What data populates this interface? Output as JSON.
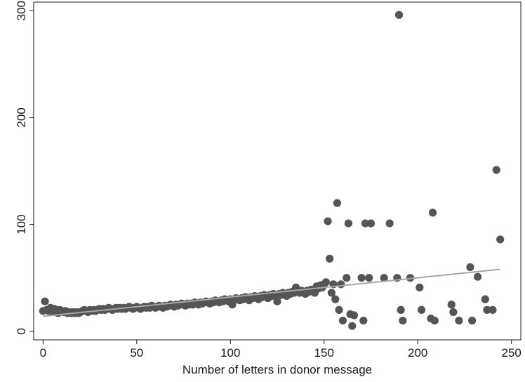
{
  "chart_data": {
    "type": "scatter",
    "title": "",
    "xlabel": "Number of letters in donor message",
    "ylabel": "",
    "xlim": [
      -5,
      255
    ],
    "ylim": [
      -8,
      308
    ],
    "x_ticks": [
      0,
      50,
      100,
      150,
      200,
      250
    ],
    "y_ticks": [
      0,
      100,
      200,
      300
    ],
    "grid": false,
    "legend": "none",
    "colors": {
      "points": "#555555",
      "fit_line": "#a6a6a6",
      "axis": "#1a1a1a"
    },
    "series": [
      {
        "type": "scatter",
        "points": [
          [
            0,
            19
          ],
          [
            1,
            28
          ],
          [
            2,
            20
          ],
          [
            3,
            19
          ],
          [
            4,
            22
          ],
          [
            5,
            18
          ],
          [
            6,
            21
          ],
          [
            7,
            20
          ],
          [
            8,
            17
          ],
          [
            9,
            20
          ],
          [
            10,
            19
          ],
          [
            11,
            18
          ],
          [
            12,
            19
          ],
          [
            13,
            17
          ],
          [
            14,
            18
          ],
          [
            15,
            17
          ],
          [
            16,
            18
          ],
          [
            17,
            17
          ],
          [
            18,
            18
          ],
          [
            19,
            17
          ],
          [
            20,
            18
          ],
          [
            21,
            19
          ],
          [
            22,
            20
          ],
          [
            23,
            19
          ],
          [
            24,
            18
          ],
          [
            25,
            20
          ],
          [
            26,
            19
          ],
          [
            27,
            20
          ],
          [
            28,
            19
          ],
          [
            29,
            20
          ],
          [
            30,
            21
          ],
          [
            31,
            20
          ],
          [
            32,
            21
          ],
          [
            33,
            20
          ],
          [
            34,
            21
          ],
          [
            35,
            22
          ],
          [
            36,
            21
          ],
          [
            37,
            20
          ],
          [
            38,
            21
          ],
          [
            39,
            22
          ],
          [
            40,
            21
          ],
          [
            41,
            22
          ],
          [
            42,
            21
          ],
          [
            43,
            22
          ],
          [
            44,
            21
          ],
          [
            45,
            22
          ],
          [
            46,
            23
          ],
          [
            47,
            22
          ],
          [
            48,
            21
          ],
          [
            49,
            22
          ],
          [
            50,
            23
          ],
          [
            51,
            22
          ],
          [
            52,
            21
          ],
          [
            53,
            22
          ],
          [
            54,
            23
          ],
          [
            55,
            22
          ],
          [
            56,
            23
          ],
          [
            57,
            22
          ],
          [
            58,
            24
          ],
          [
            59,
            23
          ],
          [
            60,
            22
          ],
          [
            61,
            23
          ],
          [
            62,
            24
          ],
          [
            63,
            23
          ],
          [
            64,
            22
          ],
          [
            65,
            24
          ],
          [
            66,
            23
          ],
          [
            67,
            24
          ],
          [
            68,
            25
          ],
          [
            69,
            24
          ],
          [
            70,
            23
          ],
          [
            71,
            25
          ],
          [
            72,
            24
          ],
          [
            73,
            25
          ],
          [
            74,
            26
          ],
          [
            75,
            25
          ],
          [
            76,
            24
          ],
          [
            77,
            26
          ],
          [
            78,
            25
          ],
          [
            79,
            26
          ],
          [
            80,
            25
          ],
          [
            81,
            27
          ],
          [
            82,
            26
          ],
          [
            83,
            25
          ],
          [
            84,
            27
          ],
          [
            85,
            26
          ],
          [
            86,
            27
          ],
          [
            87,
            28
          ],
          [
            88,
            27
          ],
          [
            89,
            26
          ],
          [
            90,
            28
          ],
          [
            91,
            27
          ],
          [
            92,
            29
          ],
          [
            93,
            28
          ],
          [
            94,
            27
          ],
          [
            95,
            29
          ],
          [
            96,
            28
          ],
          [
            97,
            30
          ],
          [
            98,
            29
          ],
          [
            99,
            28
          ],
          [
            100,
            30
          ],
          [
            101,
            25
          ],
          [
            102,
            29
          ],
          [
            103,
            31
          ],
          [
            104,
            30
          ],
          [
            105,
            29
          ],
          [
            106,
            31
          ],
          [
            107,
            30
          ],
          [
            108,
            32
          ],
          [
            109,
            31
          ],
          [
            110,
            29
          ],
          [
            111,
            32
          ],
          [
            112,
            31
          ],
          [
            113,
            33
          ],
          [
            114,
            32
          ],
          [
            115,
            30
          ],
          [
            116,
            33
          ],
          [
            117,
            32
          ],
          [
            118,
            34
          ],
          [
            119,
            33
          ],
          [
            120,
            31
          ],
          [
            121,
            34
          ],
          [
            122,
            33
          ],
          [
            123,
            35
          ],
          [
            124,
            34
          ],
          [
            125,
            28
          ],
          [
            126,
            35
          ],
          [
            127,
            34
          ],
          [
            128,
            36
          ],
          [
            129,
            35
          ],
          [
            130,
            33
          ],
          [
            131,
            36
          ],
          [
            132,
            35
          ],
          [
            133,
            37
          ],
          [
            134,
            36
          ],
          [
            135,
            41
          ],
          [
            136,
            37
          ],
          [
            137,
            36
          ],
          [
            138,
            38
          ],
          [
            139,
            37
          ],
          [
            140,
            35
          ],
          [
            141,
            38
          ],
          [
            142,
            37
          ],
          [
            143,
            39
          ],
          [
            144,
            38
          ],
          [
            145,
            36
          ],
          [
            146,
            42
          ],
          [
            147,
            40
          ],
          [
            148,
            43
          ],
          [
            149,
            41
          ],
          [
            150,
            44
          ],
          [
            151,
            46
          ],
          [
            152,
            103
          ],
          [
            153,
            68
          ],
          [
            154,
            36
          ],
          [
            155,
            44
          ],
          [
            156,
            30
          ],
          [
            157,
            120
          ],
          [
            158,
            20
          ],
          [
            159,
            44
          ],
          [
            160,
            10
          ],
          [
            162,
            50
          ],
          [
            163,
            101
          ],
          [
            164,
            16
          ],
          [
            165,
            5
          ],
          [
            166,
            15
          ],
          [
            170,
            50
          ],
          [
            171,
            10
          ],
          [
            172,
            101
          ],
          [
            174,
            50
          ],
          [
            175,
            101
          ],
          [
            182,
            50
          ],
          [
            185,
            101
          ],
          [
            189,
            50
          ],
          [
            190,
            296
          ],
          [
            191,
            20
          ],
          [
            192,
            10
          ],
          [
            196,
            50
          ],
          [
            201,
            41
          ],
          [
            202,
            20
          ],
          [
            207,
            12
          ],
          [
            208,
            111
          ],
          [
            209,
            10
          ],
          [
            218,
            25
          ],
          [
            219,
            18
          ],
          [
            222,
            10
          ],
          [
            228,
            60
          ],
          [
            229,
            10
          ],
          [
            232,
            51
          ],
          [
            236,
            30
          ],
          [
            237,
            20
          ],
          [
            240,
            20
          ],
          [
            242,
            151
          ],
          [
            244,
            86
          ]
        ]
      },
      {
        "type": "line",
        "points": [
          [
            0,
            14
          ],
          [
            244,
            58
          ]
        ]
      }
    ]
  }
}
